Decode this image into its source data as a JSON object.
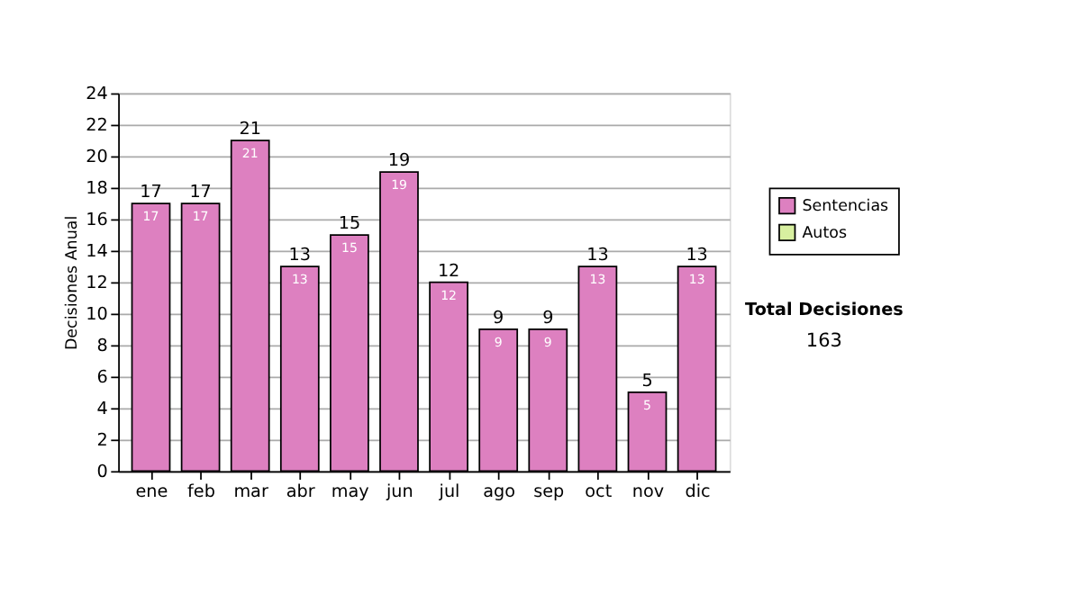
{
  "chart_data": {
    "type": "bar",
    "ylabel": "Decisiones Anual",
    "categories": [
      "ene",
      "feb",
      "mar",
      "abr",
      "may",
      "jun",
      "jul",
      "ago",
      "sep",
      "oct",
      "nov",
      "dic"
    ],
    "series": [
      {
        "name": "Sentencias",
        "color": "#dd80c0",
        "values": [
          17,
          17,
          21,
          13,
          15,
          19,
          12,
          9,
          9,
          13,
          5,
          13
        ]
      },
      {
        "name": "Autos",
        "color": "#d8f0a0",
        "values": [
          null,
          null,
          null,
          null,
          null,
          null,
          null,
          null,
          null,
          null,
          null,
          null
        ]
      }
    ],
    "data_labels": true,
    "totals": [
      "17",
      "17",
      "21",
      "13",
      "15",
      "19",
      "12",
      "9",
      "9",
      "13",
      "5",
      "13"
    ],
    "ylim": [
      0,
      24
    ],
    "yticks": [
      0,
      2,
      4,
      6,
      8,
      10,
      12,
      14,
      16,
      18,
      20,
      22,
      24
    ],
    "grid": "y",
    "legend": "right",
    "annotations": [
      "Total Decisiones",
      "163"
    ]
  }
}
